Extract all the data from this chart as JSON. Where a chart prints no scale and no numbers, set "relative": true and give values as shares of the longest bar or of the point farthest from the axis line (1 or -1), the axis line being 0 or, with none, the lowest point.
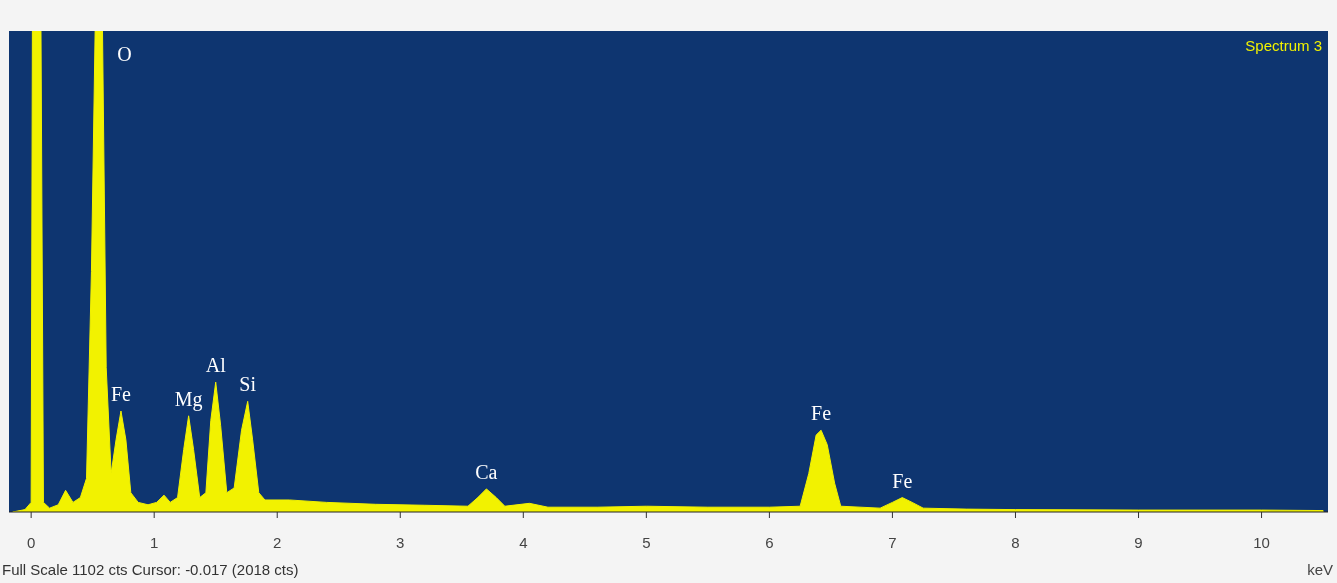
{
  "chart_data": {
    "type": "area",
    "title": "Spectrum 3",
    "xlabel": "keV",
    "relative": true,
    "xlim": [
      -0.18,
      10.54
    ],
    "xticks": [
      0,
      1,
      2,
      3,
      4,
      5,
      6,
      7,
      8,
      9,
      10
    ],
    "grid": false,
    "annotations": [
      {
        "text": "O",
        "x": 0.58,
        "y": 1
      },
      {
        "text": "Fe",
        "x": 0.73,
        "y": 0.21
      },
      {
        "text": "Mg",
        "x": 1.28,
        "y": 0.2
      },
      {
        "text": "Al",
        "x": 1.5,
        "y": 0.27
      },
      {
        "text": "Si",
        "x": 1.76,
        "y": 0.23
      },
      {
        "text": "Ca",
        "x": 3.7,
        "y": 0.048
      },
      {
        "text": "Fe",
        "x": 6.42,
        "y": 0.17
      },
      {
        "text": "Fe",
        "x": 7.08,
        "y": 0.03
      },
      "Full Scale 1102 cts Cursor: -0.017  (2018 cts)"
    ],
    "series": [
      {
        "color": "#f2f200",
        "x": [
          -0.15,
          -0.05,
          0.0,
          0.01,
          0.08,
          0.1,
          0.15,
          0.22,
          0.28,
          0.34,
          0.4,
          0.45,
          0.49,
          0.52,
          0.58,
          0.61,
          0.65,
          0.69,
          0.73,
          0.77,
          0.81,
          0.87,
          0.95,
          1.02,
          1.08,
          1.13,
          1.19,
          1.24,
          1.28,
          1.32,
          1.37,
          1.42,
          1.46,
          1.5,
          1.54,
          1.59,
          1.65,
          1.71,
          1.76,
          1.8,
          1.85,
          1.9,
          2.1,
          2.4,
          2.8,
          3.2,
          3.55,
          3.63,
          3.7,
          3.78,
          3.85,
          4.05,
          4.2,
          4.6,
          5.0,
          5.5,
          6.0,
          6.25,
          6.32,
          6.38,
          6.42,
          6.47,
          6.53,
          6.58,
          6.9,
          7.0,
          7.08,
          7.16,
          7.25,
          7.6,
          8.0,
          9.0,
          10.0,
          10.5
        ],
        "values": [
          0,
          0.005,
          0.02,
          1,
          1,
          0.02,
          0.008,
          0.015,
          0.045,
          0.02,
          0.03,
          0.07,
          0.5,
          1,
          1,
          0.3,
          0.08,
          0.15,
          0.21,
          0.15,
          0.04,
          0.02,
          0.015,
          0.02,
          0.035,
          0.02,
          0.03,
          0.13,
          0.2,
          0.13,
          0.03,
          0.04,
          0.19,
          0.27,
          0.18,
          0.04,
          0.05,
          0.17,
          0.23,
          0.15,
          0.04,
          0.025,
          0.025,
          0.02,
          0.016,
          0.014,
          0.012,
          0.03,
          0.048,
          0.03,
          0.012,
          0.018,
          0.01,
          0.01,
          0.012,
          0.01,
          0.01,
          0.012,
          0.08,
          0.16,
          0.17,
          0.14,
          0.06,
          0.012,
          0.008,
          0.02,
          0.03,
          0.02,
          0.008,
          0.006,
          0.005,
          0.004,
          0.004,
          0.003
        ]
      }
    ]
  }
}
